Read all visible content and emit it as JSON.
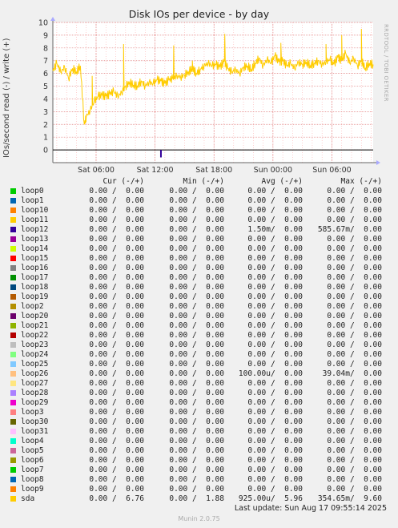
{
  "header": {
    "side_brand": "RRDTOOL / TOBI OETIKER",
    "last_update": "Last update: Sun Aug 17 09:55:14 2025",
    "footer": "Munin 2.0.75"
  },
  "legend": {
    "headers": [
      "Cur (-/+)",
      "Min (-/+)",
      "Avg (-/+)",
      "Max (-/+)"
    ],
    "rows": [
      {
        "name": "loop0",
        "color": "#00cc00",
        "cur": "0.00 /  0.00",
        "min": "0.00 /  0.00",
        "avg": "0.00 /  0.00",
        "max": "0.00 /  0.00"
      },
      {
        "name": "loop1",
        "color": "#0066b3",
        "cur": "0.00 /  0.00",
        "min": "0.00 /  0.00",
        "avg": "0.00 /  0.00",
        "max": "0.00 /  0.00"
      },
      {
        "name": "loop10",
        "color": "#ff8000",
        "cur": "0.00 /  0.00",
        "min": "0.00 /  0.00",
        "avg": "0.00 /  0.00",
        "max": "0.00 /  0.00"
      },
      {
        "name": "loop11",
        "color": "#ffcc00",
        "cur": "0.00 /  0.00",
        "min": "0.00 /  0.00",
        "avg": "0.00 /  0.00",
        "max": "0.00 /  0.00"
      },
      {
        "name": "loop12",
        "color": "#330099",
        "cur": "0.00 /  0.00",
        "min": "0.00 /  0.00",
        "avg": "1.50m/  0.00",
        "max": "585.67m/  0.00"
      },
      {
        "name": "loop13",
        "color": "#990099",
        "cur": "0.00 /  0.00",
        "min": "0.00 /  0.00",
        "avg": "0.00 /  0.00",
        "max": "0.00 /  0.00"
      },
      {
        "name": "loop14",
        "color": "#ccff00",
        "cur": "0.00 /  0.00",
        "min": "0.00 /  0.00",
        "avg": "0.00 /  0.00",
        "max": "0.00 /  0.00"
      },
      {
        "name": "loop15",
        "color": "#ff0000",
        "cur": "0.00 /  0.00",
        "min": "0.00 /  0.00",
        "avg": "0.00 /  0.00",
        "max": "0.00 /  0.00"
      },
      {
        "name": "loop16",
        "color": "#808080",
        "cur": "0.00 /  0.00",
        "min": "0.00 /  0.00",
        "avg": "0.00 /  0.00",
        "max": "0.00 /  0.00"
      },
      {
        "name": "loop17",
        "color": "#008f00",
        "cur": "0.00 /  0.00",
        "min": "0.00 /  0.00",
        "avg": "0.00 /  0.00",
        "max": "0.00 /  0.00"
      },
      {
        "name": "loop18",
        "color": "#00487d",
        "cur": "0.00 /  0.00",
        "min": "0.00 /  0.00",
        "avg": "0.00 /  0.00",
        "max": "0.00 /  0.00"
      },
      {
        "name": "loop19",
        "color": "#b35a00",
        "cur": "0.00 /  0.00",
        "min": "0.00 /  0.00",
        "avg": "0.00 /  0.00",
        "max": "0.00 /  0.00"
      },
      {
        "name": "loop2",
        "color": "#b38f00",
        "cur": "0.00 /  0.00",
        "min": "0.00 /  0.00",
        "avg": "0.00 /  0.00",
        "max": "0.00 /  0.00"
      },
      {
        "name": "loop20",
        "color": "#6b006b",
        "cur": "0.00 /  0.00",
        "min": "0.00 /  0.00",
        "avg": "0.00 /  0.00",
        "max": "0.00 /  0.00"
      },
      {
        "name": "loop21",
        "color": "#8fb300",
        "cur": "0.00 /  0.00",
        "min": "0.00 /  0.00",
        "avg": "0.00 /  0.00",
        "max": "0.00 /  0.00"
      },
      {
        "name": "loop22",
        "color": "#b30000",
        "cur": "0.00 /  0.00",
        "min": "0.00 /  0.00",
        "avg": "0.00 /  0.00",
        "max": "0.00 /  0.00"
      },
      {
        "name": "loop23",
        "color": "#bebebe",
        "cur": "0.00 /  0.00",
        "min": "0.00 /  0.00",
        "avg": "0.00 /  0.00",
        "max": "0.00 /  0.00"
      },
      {
        "name": "loop24",
        "color": "#80ff80",
        "cur": "0.00 /  0.00",
        "min": "0.00 /  0.00",
        "avg": "0.00 /  0.00",
        "max": "0.00 /  0.00"
      },
      {
        "name": "loop25",
        "color": "#80c9ff",
        "cur": "0.00 /  0.00",
        "min": "0.00 /  0.00",
        "avg": "0.00 /  0.00",
        "max": "0.00 /  0.00"
      },
      {
        "name": "loop26",
        "color": "#ffc080",
        "cur": "0.00 /  0.00",
        "min": "0.00 /  0.00",
        "avg": "100.00u/  0.00",
        "max": "39.04m/  0.00"
      },
      {
        "name": "loop27",
        "color": "#ffe680",
        "cur": "0.00 /  0.00",
        "min": "0.00 /  0.00",
        "avg": "0.00 /  0.00",
        "max": "0.00 /  0.00"
      },
      {
        "name": "loop28",
        "color": "#aa80ff",
        "cur": "0.00 /  0.00",
        "min": "0.00 /  0.00",
        "avg": "0.00 /  0.00",
        "max": "0.00 /  0.00"
      },
      {
        "name": "loop29",
        "color": "#ee00cc",
        "cur": "0.00 /  0.00",
        "min": "0.00 /  0.00",
        "avg": "0.00 /  0.00",
        "max": "0.00 /  0.00"
      },
      {
        "name": "loop3",
        "color": "#ff8080",
        "cur": "0.00 /  0.00",
        "min": "0.00 /  0.00",
        "avg": "0.00 /  0.00",
        "max": "0.00 /  0.00"
      },
      {
        "name": "loop30",
        "color": "#666600",
        "cur": "0.00 /  0.00",
        "min": "0.00 /  0.00",
        "avg": "0.00 /  0.00",
        "max": "0.00 /  0.00"
      },
      {
        "name": "loop31",
        "color": "#ffbfff",
        "cur": "0.00 /  0.00",
        "min": "0.00 /  0.00",
        "avg": "0.00 /  0.00",
        "max": "0.00 /  0.00"
      },
      {
        "name": "loop4",
        "color": "#00ffcc",
        "cur": "0.00 /  0.00",
        "min": "0.00 /  0.00",
        "avg": "0.00 /  0.00",
        "max": "0.00 /  0.00"
      },
      {
        "name": "loop5",
        "color": "#cc6699",
        "cur": "0.00 /  0.00",
        "min": "0.00 /  0.00",
        "avg": "0.00 /  0.00",
        "max": "0.00 /  0.00"
      },
      {
        "name": "loop6",
        "color": "#999900",
        "cur": "0.00 /  0.00",
        "min": "0.00 /  0.00",
        "avg": "0.00 /  0.00",
        "max": "0.00 /  0.00"
      },
      {
        "name": "loop7",
        "color": "#00cc00",
        "cur": "0.00 /  0.00",
        "min": "0.00 /  0.00",
        "avg": "0.00 /  0.00",
        "max": "0.00 /  0.00"
      },
      {
        "name": "loop8",
        "color": "#0066b3",
        "cur": "0.00 /  0.00",
        "min": "0.00 /  0.00",
        "avg": "0.00 /  0.00",
        "max": "0.00 /  0.00"
      },
      {
        "name": "loop9",
        "color": "#ff8000",
        "cur": "0.00 /  0.00",
        "min": "0.00 /  0.00",
        "avg": "0.00 /  0.00",
        "max": "0.00 /  0.00"
      },
      {
        "name": "sda",
        "color": "#ffcc00",
        "cur": "0.00 /  6.76",
        "min": "0.00 /  1.88",
        "avg": "925.00u/  5.96",
        "max": "354.65m/  9.60"
      }
    ]
  },
  "chart_data": {
    "type": "line",
    "title": "Disk IOs per device - by day",
    "ylabel": "IOs/second read (-) / write (+)",
    "xlabel": "",
    "ylim": [
      -1,
      10
    ],
    "yticks": [
      "0",
      "1",
      "2",
      "3",
      "4",
      "5",
      "6",
      "7",
      "8",
      "9",
      "10"
    ],
    "xticks": [
      "Sat 06:00",
      "Sat 12:00",
      "Sat 18:00",
      "Sun 00:00",
      "Sun 06:00"
    ],
    "xlim_hours_from_sat_00": [
      1.6,
      34.2
    ],
    "xtick_hours_from_sat_00": [
      6,
      12,
      18,
      24,
      30
    ],
    "grid": true,
    "series": [
      {
        "name": "sda",
        "color": "#ffcc00",
        "x_hours_from_sat_00": [
          1.6,
          2.0,
          2.4,
          2.8,
          3.2,
          3.6,
          4.0,
          4.4,
          4.8,
          5.0,
          5.4,
          5.8,
          6.2,
          6.6,
          7.0,
          7.4,
          7.8,
          8.2,
          8.6,
          9.0,
          9.4,
          9.8,
          10.2,
          10.6,
          11.0,
          11.4,
          11.8,
          12.2,
          12.6,
          13.0,
          13.4,
          13.8,
          14.2,
          14.6,
          15.0,
          15.4,
          15.8,
          16.2,
          16.6,
          17.0,
          17.4,
          17.8,
          18.2,
          18.6,
          19.0,
          19.4,
          19.8,
          20.2,
          20.6,
          21.0,
          21.4,
          21.8,
          22.2,
          22.6,
          23.0,
          23.4,
          23.8,
          24.2,
          24.6,
          25.0,
          25.4,
          25.8,
          26.2,
          26.6,
          27.0,
          27.4,
          27.8,
          28.2,
          28.6,
          29.0,
          29.4,
          29.8,
          30.2,
          30.6,
          31.0,
          31.4,
          31.8,
          32.2,
          32.6,
          33.0,
          33.4,
          33.8,
          34.2
        ],
        "values": [
          6.2,
          6.8,
          6.1,
          6.5,
          5.6,
          6.4,
          6.1,
          6.6,
          2.0,
          2.6,
          3.1,
          3.8,
          4.2,
          4.3,
          4.2,
          4.4,
          4.6,
          4.2,
          4.5,
          5.0,
          5.3,
          5.1,
          5.0,
          5.4,
          5.0,
          5.3,
          5.2,
          5.5,
          5.4,
          5.2,
          5.5,
          5.6,
          5.8,
          5.7,
          5.9,
          6.1,
          6.4,
          6.0,
          6.3,
          6.6,
          6.8,
          6.6,
          6.7,
          6.5,
          6.9,
          6.4,
          6.1,
          6.3,
          6.0,
          6.5,
          6.6,
          6.3,
          6.8,
          7.2,
          6.6,
          7.1,
          6.8,
          7.4,
          6.9,
          7.0,
          6.6,
          6.8,
          6.4,
          6.9,
          6.7,
          6.9,
          6.6,
          6.8,
          7.0,
          6.7,
          6.9,
          7.1,
          6.7,
          7.3,
          7.0,
          7.6,
          6.8,
          7.2,
          6.6,
          7.0,
          6.4,
          6.8,
          6.7
        ],
        "spikes": [
          {
            "x_hours_from_sat_00": 5.6,
            "value": 5.8
          },
          {
            "x_hours_from_sat_00": 8.8,
            "value": 8.3
          },
          {
            "x_hours_from_sat_00": 13.9,
            "value": 8.2
          },
          {
            "x_hours_from_sat_00": 15.8,
            "value": 7.0
          },
          {
            "x_hours_from_sat_00": 19.1,
            "value": 9.1
          },
          {
            "x_hours_from_sat_00": 24.8,
            "value": 8.4
          },
          {
            "x_hours_from_sat_00": 29.4,
            "value": 8.3
          },
          {
            "x_hours_from_sat_00": 31.0,
            "value": 9.0
          },
          {
            "x_hours_from_sat_00": 33.0,
            "value": 9.5
          }
        ]
      },
      {
        "name": "loop12",
        "color": "#330099",
        "x_hours_from_sat_00": [
          12.6,
          12.7
        ],
        "values": [
          -0.59,
          0
        ]
      }
    ]
  }
}
